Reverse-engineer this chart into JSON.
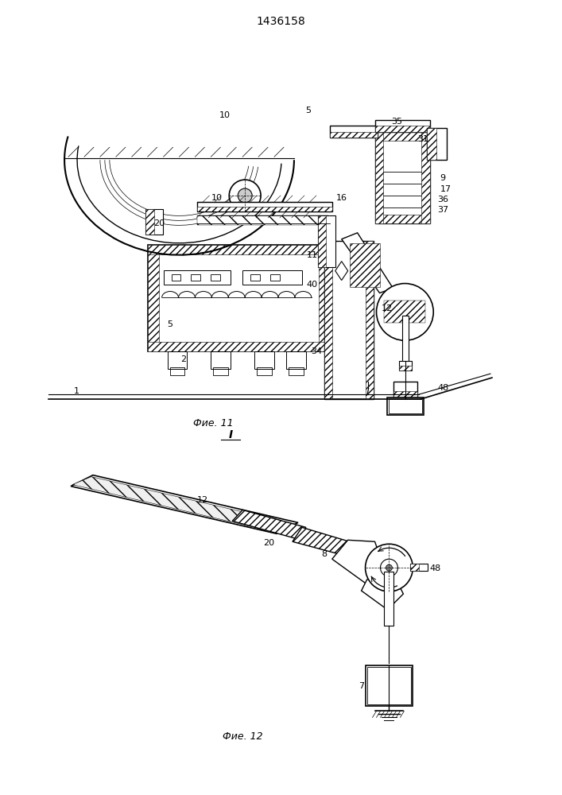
{
  "title": "1436158",
  "fig11_label": "Фие. 11",
  "fig12_label": "Фие. 12",
  "section_label": "I",
  "bg_color": "#ffffff",
  "line_color": "#000000",
  "fig_width": 7.07,
  "fig_height": 10.0
}
